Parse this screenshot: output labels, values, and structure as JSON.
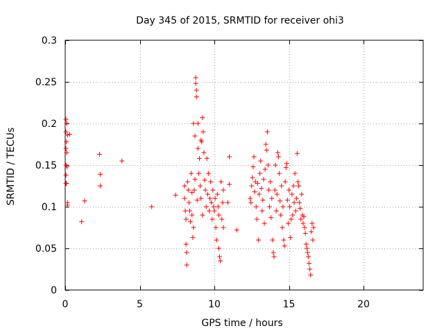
{
  "chart_data": {
    "type": "scatter",
    "title": "Day 345 of 2015, SRMTID for receiver ohi3",
    "xlabel": "GPS time / hours",
    "ylabel": "SRMTID / TECUs",
    "xlim": [
      0,
      24
    ],
    "ylim": [
      0,
      0.3
    ],
    "xticks": [
      0,
      5,
      10,
      15,
      20
    ],
    "xtick_labels": [
      "0",
      "5",
      "10",
      "15",
      "20"
    ],
    "yticks": [
      0,
      0.05,
      0.1,
      0.15,
      0.2,
      0.25,
      0.3
    ],
    "ytick_labels": [
      "0",
      "0.05",
      "0.1",
      "0.15",
      "0.2",
      "0.25",
      "0.3"
    ],
    "grid": true,
    "marker": "+",
    "color": "#ff0000",
    "series": [
      {
        "name": "SRMTID",
        "points": [
          [
            0.05,
            0.205
          ],
          [
            0.1,
            0.2
          ],
          [
            0.05,
            0.19
          ],
          [
            0.15,
            0.186
          ],
          [
            0.08,
            0.178
          ],
          [
            0.05,
            0.17
          ],
          [
            0.1,
            0.165
          ],
          [
            0.05,
            0.15
          ],
          [
            0.12,
            0.148
          ],
          [
            0.05,
            0.138
          ],
          [
            0.08,
            0.128
          ],
          [
            0.05,
            0.128
          ],
          [
            0.15,
            0.105
          ],
          [
            0.15,
            0.102
          ],
          [
            0.3,
            0.187
          ],
          [
            1.3,
            0.107
          ],
          [
            1.1,
            0.082
          ],
          [
            2.3,
            0.163
          ],
          [
            2.35,
            0.139
          ],
          [
            2.35,
            0.125
          ],
          [
            3.8,
            0.155
          ],
          [
            5.8,
            0.1
          ],
          [
            7.4,
            0.114
          ],
          [
            8.0,
            0.125
          ],
          [
            8.0,
            0.11
          ],
          [
            8.05,
            0.095
          ],
          [
            8.1,
            0.085
          ],
          [
            8.1,
            0.055
          ],
          [
            8.15,
            0.045
          ],
          [
            8.15,
            0.03
          ],
          [
            8.2,
            0.13
          ],
          [
            8.25,
            0.12
          ],
          [
            8.3,
            0.105
          ],
          [
            8.35,
            0.095
          ],
          [
            8.4,
            0.082
          ],
          [
            8.45,
            0.14
          ],
          [
            8.5,
            0.117
          ],
          [
            8.5,
            0.09
          ],
          [
            8.55,
            0.063
          ],
          [
            8.6,
            0.2
          ],
          [
            8.6,
            0.075
          ],
          [
            8.65,
            0.12
          ],
          [
            8.7,
            0.185
          ],
          [
            8.7,
            0.133
          ],
          [
            8.75,
            0.255
          ],
          [
            8.75,
            0.248
          ],
          [
            8.8,
            0.24
          ],
          [
            8.8,
            0.232
          ],
          [
            8.85,
            0.108
          ],
          [
            8.9,
            0.2
          ],
          [
            8.9,
            0.17
          ],
          [
            8.95,
            0.14
          ],
          [
            9.0,
            0.158
          ],
          [
            9.05,
            0.125
          ],
          [
            9.1,
            0.18
          ],
          [
            9.1,
            0.11
          ],
          [
            9.15,
            0.178
          ],
          [
            9.2,
            0.207
          ],
          [
            9.2,
            0.09
          ],
          [
            9.25,
            0.19
          ],
          [
            9.3,
            0.165
          ],
          [
            9.35,
            0.132
          ],
          [
            9.4,
            0.12
          ],
          [
            9.45,
            0.1
          ],
          [
            9.5,
            0.158
          ],
          [
            9.55,
            0.115
          ],
          [
            9.6,
            0.14
          ],
          [
            9.65,
            0.095
          ],
          [
            9.7,
            0.11
          ],
          [
            9.75,
            0.13
          ],
          [
            9.8,
            0.105
          ],
          [
            9.85,
            0.085
          ],
          [
            9.9,
            0.12
          ],
          [
            9.95,
            0.1
          ],
          [
            10.0,
            0.095
          ],
          [
            10.05,
            0.11
          ],
          [
            10.1,
            0.075
          ],
          [
            10.15,
            0.06
          ],
          [
            10.2,
            0.115
          ],
          [
            10.25,
            0.1
          ],
          [
            10.3,
            0.09
          ],
          [
            10.3,
            0.05
          ],
          [
            10.35,
            0.04
          ],
          [
            10.4,
            0.035
          ],
          [
            10.45,
            0.13
          ],
          [
            10.5,
            0.085
          ],
          [
            10.55,
            0.105
          ],
          [
            10.6,
            0.12
          ],
          [
            10.6,
            0.075
          ],
          [
            10.9,
            0.105
          ],
          [
            11.0,
            0.16
          ],
          [
            11.0,
            0.127
          ],
          [
            11.5,
            0.072
          ],
          [
            12.4,
            0.11
          ],
          [
            12.45,
            0.105
          ],
          [
            12.5,
            0.125
          ],
          [
            12.55,
            0.135
          ],
          [
            12.6,
            0.148
          ],
          [
            12.65,
            0.16
          ],
          [
            12.7,
            0.118
          ],
          [
            12.75,
            0.13
          ],
          [
            12.8,
            0.1
          ],
          [
            12.85,
            0.085
          ],
          [
            12.9,
            0.128
          ],
          [
            12.95,
            0.06
          ],
          [
            13.0,
            0.115
          ],
          [
            13.05,
            0.14
          ],
          [
            13.1,
            0.155
          ],
          [
            13.15,
            0.122
          ],
          [
            13.2,
            0.095
          ],
          [
            13.25,
            0.108
          ],
          [
            13.3,
            0.133
          ],
          [
            13.35,
            0.08
          ],
          [
            13.4,
            0.145
          ],
          [
            13.45,
            0.175
          ],
          [
            13.5,
            0.168
          ],
          [
            13.55,
            0.19
          ],
          [
            13.6,
            0.15
          ],
          [
            13.65,
            0.12
          ],
          [
            13.7,
            0.1
          ],
          [
            13.75,
            0.13
          ],
          [
            13.8,
            0.087
          ],
          [
            13.85,
            0.11
          ],
          [
            13.9,
            0.06
          ],
          [
            13.95,
            0.045
          ],
          [
            14.0,
            0.04
          ],
          [
            14.05,
            0.12
          ],
          [
            14.1,
            0.15
          ],
          [
            14.15,
            0.095
          ],
          [
            14.2,
            0.115
          ],
          [
            14.25,
            0.165
          ],
          [
            14.3,
            0.16
          ],
          [
            14.35,
            0.14
          ],
          [
            14.4,
            0.107
          ],
          [
            14.45,
            0.09
          ],
          [
            14.5,
            0.125
          ],
          [
            14.55,
            0.075
          ],
          [
            14.6,
            0.1
          ],
          [
            14.65,
            0.06
          ],
          [
            14.7,
            0.053
          ],
          [
            14.75,
            0.13
          ],
          [
            14.8,
            0.147
          ],
          [
            14.85,
            0.152
          ],
          [
            14.9,
            0.108
          ],
          [
            14.95,
            0.08
          ],
          [
            15.0,
            0.12
          ],
          [
            15.05,
            0.1
          ],
          [
            15.1,
            0.063
          ],
          [
            15.15,
            0.085
          ],
          [
            15.2,
            0.115
          ],
          [
            15.25,
            0.09
          ],
          [
            15.3,
            0.125
          ],
          [
            15.35,
            0.105
          ],
          [
            15.4,
            0.14
          ],
          [
            15.45,
            0.095
          ],
          [
            15.5,
            0.11
          ],
          [
            15.55,
            0.164
          ],
          [
            15.6,
            0.13
          ],
          [
            15.65,
            0.125
          ],
          [
            15.7,
            0.105
          ],
          [
            15.75,
            0.098
          ],
          [
            15.8,
            0.085
          ],
          [
            15.85,
            0.115
          ],
          [
            15.9,
            0.09
          ],
          [
            15.95,
            0.08
          ],
          [
            16.0,
            0.088
          ],
          [
            16.05,
            0.075
          ],
          [
            16.1,
            0.068
          ],
          [
            16.15,
            0.055
          ],
          [
            16.2,
            0.05
          ],
          [
            16.25,
            0.045
          ],
          [
            16.3,
            0.04
          ],
          [
            16.35,
            0.032
          ],
          [
            16.4,
            0.025
          ],
          [
            16.45,
            0.018
          ],
          [
            16.5,
            0.07
          ],
          [
            16.55,
            0.08
          ],
          [
            16.6,
            0.06
          ],
          [
            16.65,
            0.075
          ]
        ]
      }
    ]
  }
}
